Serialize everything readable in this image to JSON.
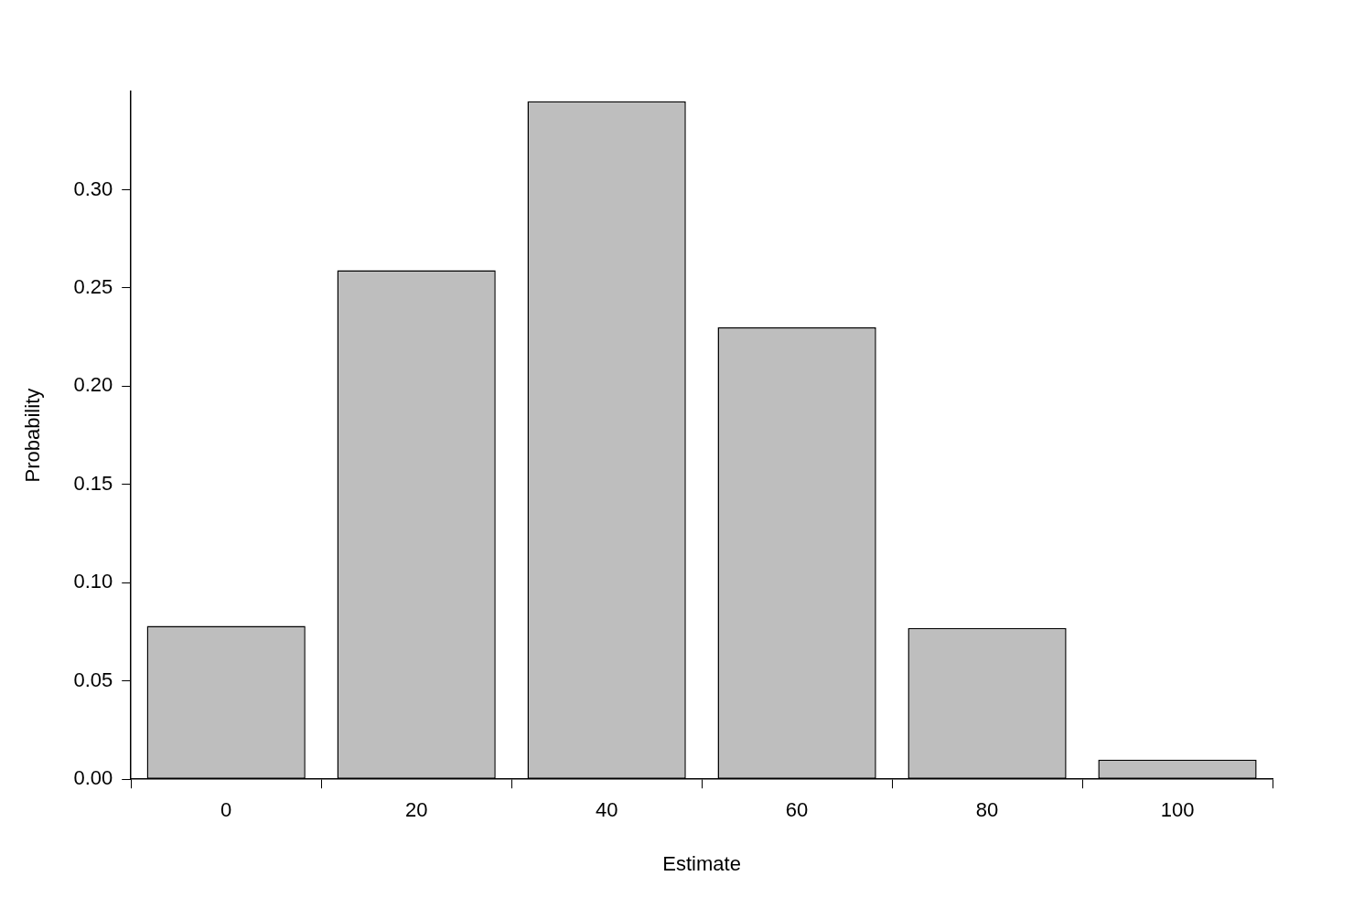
{
  "chart_data": {
    "type": "bar",
    "categories": [
      "0",
      "20",
      "40",
      "60",
      "80",
      "100"
    ],
    "values": [
      0.078,
      0.259,
      0.345,
      0.23,
      0.077,
      0.01
    ],
    "color": "#bebebe",
    "x_label": "Estimate",
    "y_label": "Probability",
    "ylim": [
      0,
      0.35
    ],
    "yticks": [
      {
        "value": 0,
        "label": "0.00"
      },
      {
        "value": 0.05,
        "label": "0.05"
      },
      {
        "value": 0.1,
        "label": "0.10"
      },
      {
        "value": 0.15,
        "label": "0.15"
      },
      {
        "value": 0.2,
        "label": "0.20"
      },
      {
        "value": 0.25,
        "label": "0.25"
      },
      {
        "value": 0.3,
        "label": "0.30"
      }
    ],
    "grid": false
  }
}
